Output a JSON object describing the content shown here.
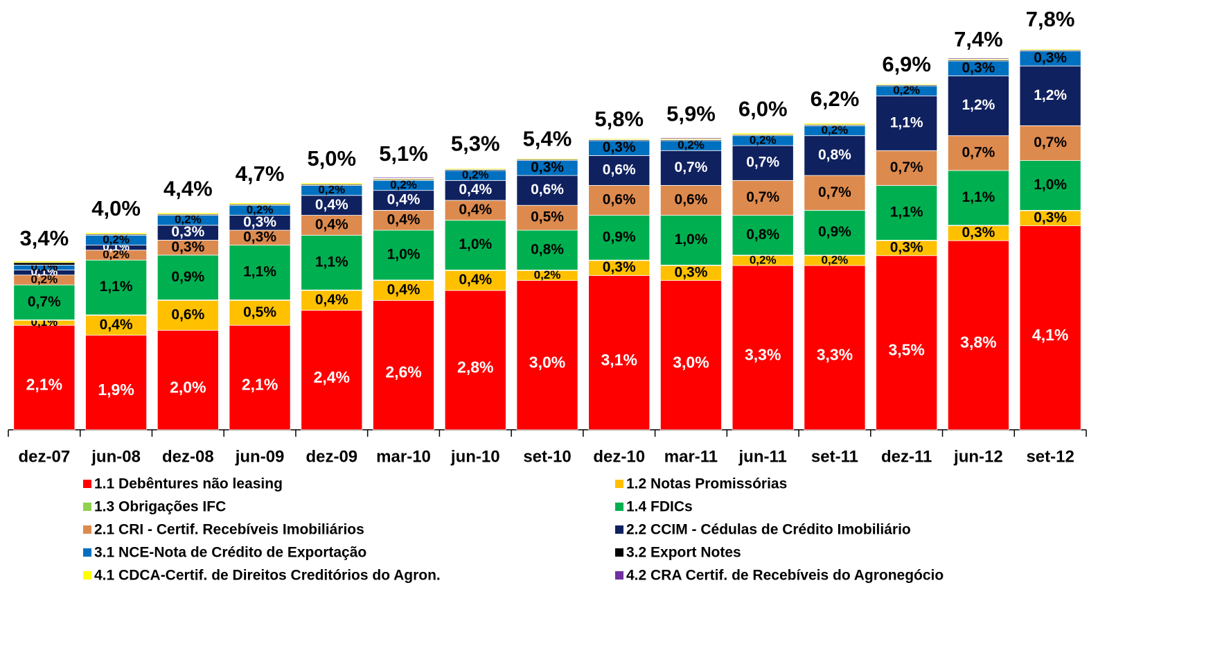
{
  "chart_data": {
    "type": "stacked_bar",
    "categories": [
      "dez-07",
      "jun-08",
      "dez-08",
      "jun-09",
      "dez-09",
      "mar-10",
      "jun-10",
      "set-10",
      "dez-10",
      "mar-11",
      "jun-11",
      "set-11",
      "dez-11",
      "jun-12",
      "set-12"
    ],
    "totals": [
      3.4,
      4.0,
      4.4,
      4.7,
      5.0,
      5.1,
      5.3,
      5.4,
      5.8,
      5.9,
      6.0,
      6.2,
      6.9,
      7.4,
      7.8
    ],
    "total_labels": [
      "3,4%",
      "4,0%",
      "4,4%",
      "4,7%",
      "5,0%",
      "5,1%",
      "5,3%",
      "5,4%",
      "5,8%",
      "5,9%",
      "6,0%",
      "6,2%",
      "6,9%",
      "7,4%",
      "7,8%"
    ],
    "series": [
      {
        "name": "1.1 Debêntures não leasing",
        "color": "#ff0000",
        "label_color": "#ffffff",
        "values": [
          2.1,
          1.9,
          2.0,
          2.1,
          2.4,
          2.6,
          2.8,
          3.0,
          3.1,
          3.0,
          3.3,
          3.3,
          3.5,
          3.8,
          4.1
        ],
        "value_labels": [
          "2,1%",
          "1,9%",
          "2,0%",
          "2,1%",
          "2,4%",
          "2,6%",
          "2,8%",
          "3,0%",
          "3,1%",
          "3,0%",
          "3,3%",
          "3,3%",
          "3,5%",
          "3,8%",
          "4,1%"
        ]
      },
      {
        "name": "1.2 Notas Promissórias",
        "color": "#ffc000",
        "label_color": "#000000",
        "values": [
          0.1,
          0.4,
          0.6,
          0.5,
          0.4,
          0.4,
          0.4,
          0.2,
          0.3,
          0.3,
          0.2,
          0.2,
          0.3,
          0.3,
          0.3
        ],
        "value_labels": [
          "0,1%",
          "0,4%",
          "0,6%",
          "0,5%",
          "0,4%",
          "0,4%",
          "0,4%",
          "0,2%",
          "0,3%",
          "0,3%",
          "0,2%",
          "0,2%",
          "0,3%",
          "0,3%",
          "0,3%"
        ]
      },
      {
        "name": "1.3 Obrigações IFC",
        "color": "#92d050",
        "label_color": "#000000",
        "values": [
          0.01,
          0.01,
          0.01,
          0.01,
          0.01,
          0.01,
          0.01,
          0.01,
          0.01,
          0.01,
          0.01,
          0.01,
          0.01,
          0.01,
          0.01
        ]
      },
      {
        "name": "1.4 FDICs",
        "color": "#00b050",
        "label_color": "#000000",
        "values": [
          0.7,
          1.1,
          0.9,
          1.1,
          1.1,
          1.0,
          1.0,
          0.8,
          0.9,
          1.0,
          0.8,
          0.9,
          1.1,
          1.1,
          1.0
        ],
        "value_labels": [
          "0,7%",
          "1,1%",
          "0,9%",
          "1,1%",
          "1,1%",
          "1,0%",
          "1,0%",
          "0,8%",
          "0,9%",
          "1,0%",
          "0,8%",
          "0,9%",
          "1,1%",
          "1,1%",
          "1,0%"
        ]
      },
      {
        "name": "2.1 CRI - Certif. Recebíveis Imobiliários",
        "color": "#dd8a4e",
        "label_color": "#000000",
        "values": [
          0.2,
          0.2,
          0.3,
          0.3,
          0.4,
          0.4,
          0.4,
          0.5,
          0.6,
          0.6,
          0.7,
          0.7,
          0.7,
          0.7,
          0.7
        ],
        "value_labels": [
          "0,2%",
          "0,2%",
          "0,3%",
          "0,3%",
          "0,4%",
          "0,4%",
          "0,4%",
          "0,5%",
          "0,6%",
          "0,6%",
          "0,7%",
          "0,7%",
          "0,7%",
          "0,7%",
          "0,7%"
        ]
      },
      {
        "name": "2.2 CCIM - Cédulas de Crédito Imobiliário",
        "color": "#10215f",
        "label_color": "#ffffff",
        "values": [
          0.1,
          0.1,
          0.3,
          0.3,
          0.4,
          0.4,
          0.4,
          0.6,
          0.6,
          0.7,
          0.7,
          0.8,
          1.1,
          1.2,
          1.2
        ],
        "value_labels": [
          "0,1%",
          "0,1%",
          "0,3%",
          "0,3%",
          "0,4%",
          "0,4%",
          "0,4%",
          "0,6%",
          "0,6%",
          "0,7%",
          "0,7%",
          "0,8%",
          "1,1%",
          "1,2%",
          "1,2%"
        ]
      },
      {
        "name": "3.1 NCE-Nota de Crédito de Exportação",
        "color": "#0070c0",
        "label_color": "#000000",
        "values": [
          0.1,
          0.2,
          0.2,
          0.2,
          0.2,
          0.2,
          0.2,
          0.3,
          0.3,
          0.2,
          0.2,
          0.2,
          0.2,
          0.3,
          0.3
        ],
        "value_labels": [
          "0,1%",
          "0,2%",
          "0,2%",
          "0,2%",
          "0,2%",
          "0,2%",
          "0,2%",
          "0,3%",
          "0,3%",
          "0,2%",
          "0,2%",
          "0,2%",
          "0,2%",
          "0,3%",
          "0,3%"
        ]
      },
      {
        "name": "3.2 Export Notes",
        "color": "#000000",
        "label_color": "#ffffff",
        "values": [
          0.05,
          0.02,
          0.02,
          0.02,
          0.02,
          0.02,
          0.02,
          0.02,
          0.02,
          0.02,
          0.02,
          0.02,
          0.02,
          0.02,
          0.02
        ]
      },
      {
        "name": "4.1 CDCA-Certif. de Direitos Creditórios do Agron.",
        "color": "#ffff00",
        "label_color": "#000000",
        "values": [
          0.03,
          0.03,
          0.03,
          0.03,
          0.03,
          0.02,
          0.02,
          0.02,
          0.02,
          0.02,
          0.03,
          0.03,
          0.02,
          0.02,
          0.02
        ]
      },
      {
        "name": "4.2 CRA Certif. de Recebíveis do Agronegócio",
        "color": "#7030a0",
        "label_color": "#ffffff",
        "values": [
          0.01,
          0.01,
          0.01,
          0.01,
          0.01,
          0.02,
          0.01,
          0.01,
          0.01,
          0.02,
          0.01,
          0.01,
          0.01,
          0.02,
          0.01
        ]
      }
    ]
  }
}
